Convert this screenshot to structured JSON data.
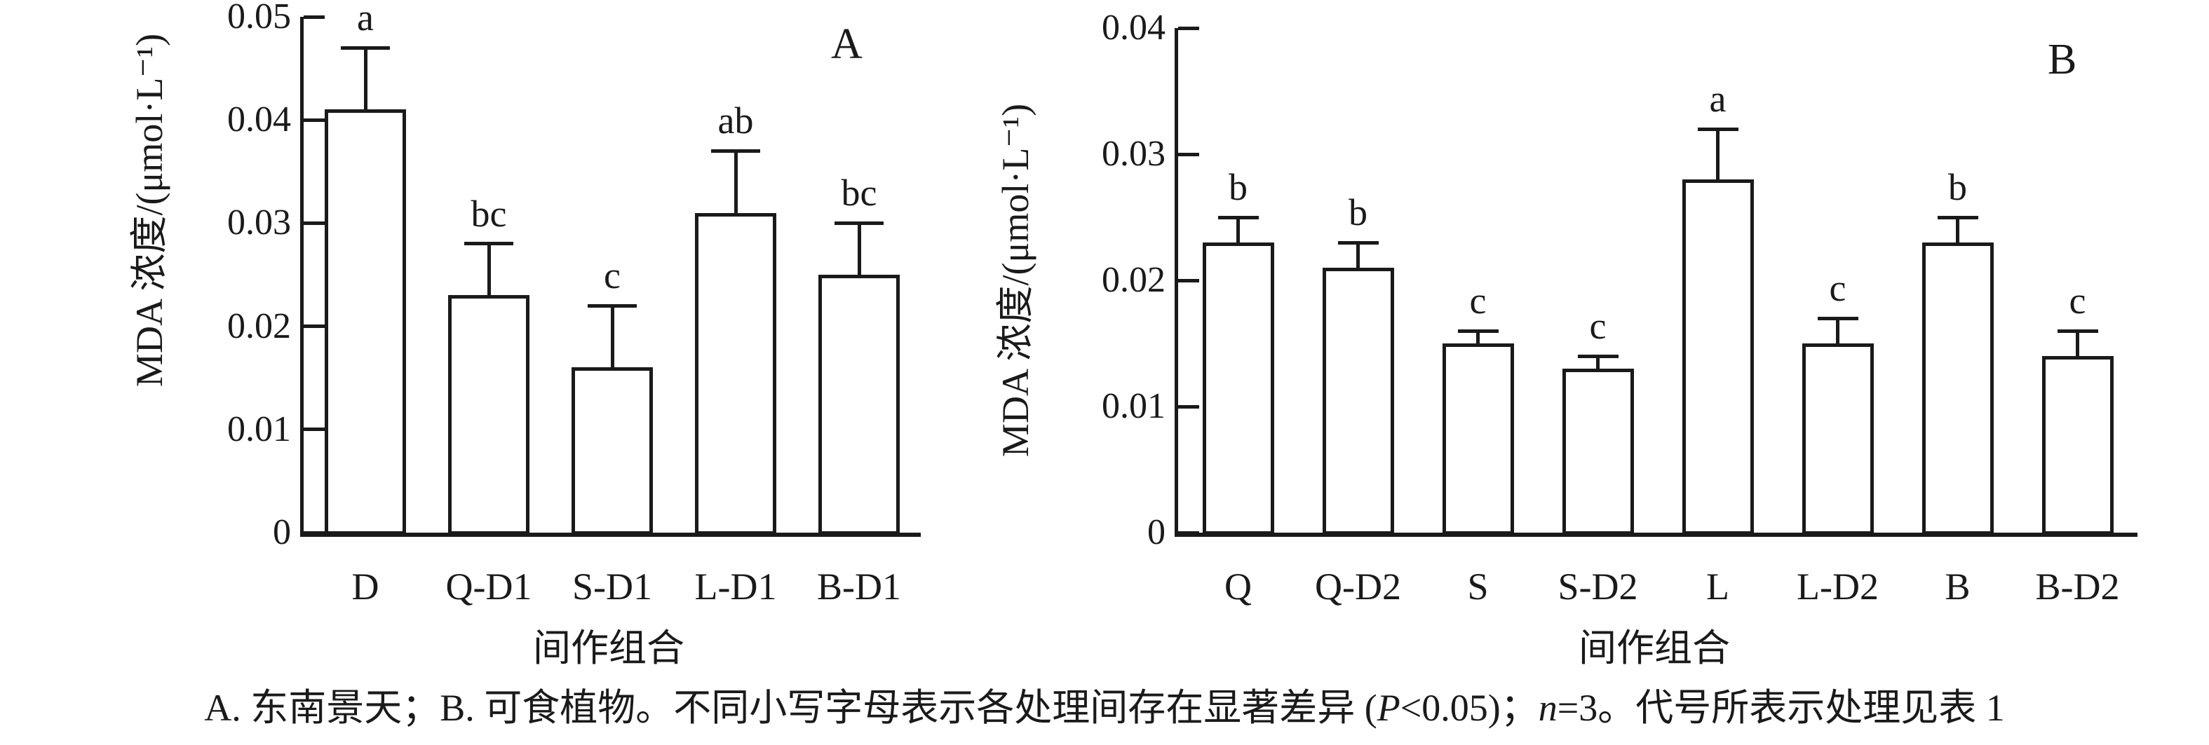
{
  "figure": {
    "colors": {
      "ink": "#1a1a1a",
      "bar_fill": "#ffffff",
      "background": "#ffffff"
    },
    "caption": {
      "part1": "A. 东南景天；B. 可食植物。不同小写字母表示各处理间存在显著差异 (",
      "p_symbol": "P",
      "part2": "<0.05)；",
      "n_symbol": "n",
      "part3": "=3。代号所表示处理见表 1"
    }
  },
  "chart_data": [
    {
      "type": "bar",
      "panel_label": "A",
      "title": "",
      "ylabel": "MDA 浓度/(μmol·L⁻¹)",
      "xlabel": "间作组合",
      "ylim": [
        0,
        0.05
      ],
      "yticks": [
        "0.05",
        "0.04",
        "0.03",
        "0.02",
        "0.01",
        "0"
      ],
      "grid": false,
      "legend": "none",
      "categories": [
        "D",
        "Q-D1",
        "S-D1",
        "L-D1",
        "B-D1"
      ],
      "values": [
        0.041,
        0.023,
        0.016,
        0.031,
        0.025
      ],
      "error_top": [
        0.047,
        0.028,
        0.022,
        0.037,
        0.03
      ],
      "sig_letters": [
        "a",
        "bc",
        "c",
        "ab",
        "bc"
      ]
    },
    {
      "type": "bar",
      "panel_label": "B",
      "title": "",
      "ylabel": "MDA 浓度/(μmol·L⁻¹)",
      "xlabel": "间作组合",
      "ylim": [
        0,
        0.04
      ],
      "yticks": [
        "0.04",
        "0.03",
        "0.02",
        "0.01",
        "0"
      ],
      "grid": false,
      "legend": "none",
      "categories": [
        "Q",
        "Q-D2",
        "S",
        "S-D2",
        "L",
        "L-D2",
        "B",
        "B-D2"
      ],
      "values": [
        0.023,
        0.021,
        0.015,
        0.013,
        0.028,
        0.015,
        0.023,
        0.014
      ],
      "error_top": [
        0.025,
        0.023,
        0.016,
        0.014,
        0.032,
        0.017,
        0.025,
        0.016
      ],
      "sig_letters": [
        "b",
        "b",
        "c",
        "c",
        "a",
        "c",
        "b",
        "c"
      ]
    }
  ]
}
